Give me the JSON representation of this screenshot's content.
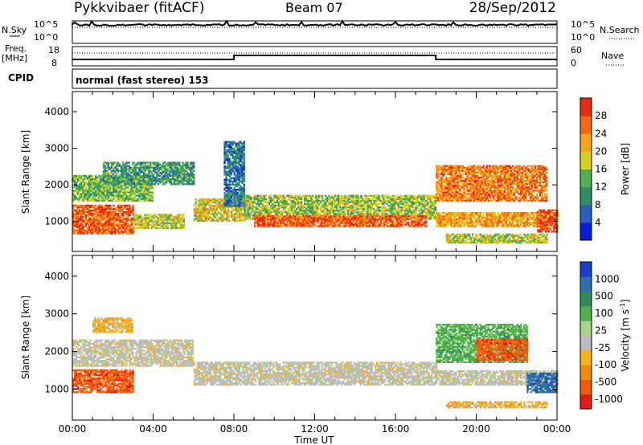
{
  "header": {
    "station": "Pykkvibaer (fitACF)",
    "beam": "Beam 07",
    "date": "28/Sep/2012"
  },
  "strip_labels": {
    "nsky": "N.Sky",
    "nsky_top": "10^5",
    "nsky_bottom": "10^0",
    "nsearch": "N.Search",
    "nsearch_top": "10^5",
    "nsearch_bottom": "10^0",
    "freq": "Freq.",
    "freq_unit": "[MHz]",
    "freq_top": "18",
    "freq_bottom": "8",
    "nave": "Nave",
    "nave_top": "60",
    "nave_bottom": "0",
    "cpid": "CPID",
    "cpid_text": "normal (fast stereo) 153"
  },
  "colors": {
    "frame": "#000000",
    "gray_scatter": "#bdbdbd"
  },
  "chart_data": [
    {
      "type": "heatmap",
      "name": "power",
      "xlabel": "Time UT",
      "ylabel": "Slant Range [km]",
      "x_ticks": [
        "00:00",
        "04:00",
        "08:00",
        "12:00",
        "16:00",
        "20:00",
        "00:00"
      ],
      "xlim_hours": [
        0,
        24
      ],
      "y_ticks": [
        1000,
        2000,
        3000,
        4000
      ],
      "ylim": [
        180,
        4550
      ],
      "colorbar": {
        "label": "Power [dB]",
        "ticks": [
          "4",
          "8",
          "12",
          "16",
          "20",
          "24",
          "28"
        ],
        "range": [
          0,
          30
        ],
        "colors": [
          "#0a1ed8",
          "#2a5fbc",
          "#2f8f6a",
          "#4fae4f",
          "#d6d21e",
          "#f5a31a",
          "#ef6a12",
          "#e82a12"
        ]
      },
      "bands": [
        {
          "t0": 0.0,
          "t1": 3.0,
          "r0": 650,
          "r1": 1450,
          "level": 0.85
        },
        {
          "t0": 3.0,
          "t1": 5.5,
          "r0": 800,
          "r1": 1200,
          "level": 0.55
        },
        {
          "t0": 0.0,
          "t1": 4.0,
          "r0": 1550,
          "r1": 2250,
          "level": 0.45
        },
        {
          "t0": 1.5,
          "t1": 6.0,
          "r0": 2000,
          "r1": 2600,
          "level": 0.35
        },
        {
          "t0": 6.0,
          "t1": 8.5,
          "r0": 1000,
          "r1": 1600,
          "level": 0.6
        },
        {
          "t0": 8.5,
          "t1": 18.0,
          "r0": 1050,
          "r1": 1700,
          "level": 0.5
        },
        {
          "t0": 9.0,
          "t1": 17.5,
          "r0": 850,
          "r1": 1150,
          "level": 0.85
        },
        {
          "t0": 18.0,
          "t1": 23.5,
          "r0": 1550,
          "r1": 2500,
          "level": 0.78
        },
        {
          "t0": 18.0,
          "t1": 24.0,
          "r0": 850,
          "r1": 1250,
          "level": 0.7
        },
        {
          "t0": 23.0,
          "t1": 24.0,
          "r0": 700,
          "r1": 1300,
          "level": 0.9
        },
        {
          "t0": 18.5,
          "t1": 23.5,
          "r0": 400,
          "r1": 650,
          "level": 0.55
        },
        {
          "t0": 7.5,
          "t1": 8.5,
          "r0": 1400,
          "r1": 3200,
          "level": 0.25
        }
      ]
    },
    {
      "type": "heatmap",
      "name": "velocity",
      "xlabel": "Time UT",
      "ylabel": "Slant Range [km]",
      "x_ticks": [
        "00:00",
        "04:00",
        "08:00",
        "12:00",
        "16:00",
        "20:00",
        "00:00"
      ],
      "xlim_hours": [
        0,
        24
      ],
      "y_ticks": [
        1000,
        2000,
        3000,
        4000
      ],
      "ylim": [
        180,
        4550
      ],
      "colorbar": {
        "label": "Velocity [m s",
        "label_sup": "-1",
        "label_end": "]",
        "ticks": [
          "1000",
          "500",
          "100",
          "25",
          "-25",
          "-100",
          "-500",
          "-1000"
        ],
        "colors": [
          "#1a3fc8",
          "#2e6fb0",
          "#2f8a5a",
          "#4fb04a",
          "#a8d48c",
          "#bdbdbd",
          "#f5b21a",
          "#f08a12",
          "#ee5a12",
          "#e41a12"
        ]
      },
      "bands": [
        {
          "t0": 0.0,
          "t1": 3.0,
          "r0": 900,
          "r1": 1500,
          "level": "-500"
        },
        {
          "t0": 0.0,
          "t1": 6.0,
          "r0": 1600,
          "r1": 2300,
          "level": "0"
        },
        {
          "t0": 1.0,
          "t1": 3.0,
          "r0": 2500,
          "r1": 2900,
          "level": "-100"
        },
        {
          "t0": 6.0,
          "t1": 18.0,
          "r0": 1100,
          "r1": 1700,
          "level": "0"
        },
        {
          "t0": 18.0,
          "t1": 22.5,
          "r0": 1700,
          "r1": 2700,
          "level": "100"
        },
        {
          "t0": 20.0,
          "t1": 22.5,
          "r0": 1750,
          "r1": 2300,
          "level": "-500"
        },
        {
          "t0": 18.0,
          "t1": 24.0,
          "r0": 1100,
          "r1": 1500,
          "level": "0"
        },
        {
          "t0": 22.5,
          "t1": 24.0,
          "r0": 900,
          "r1": 1400,
          "level": "500"
        },
        {
          "t0": 18.5,
          "t1": 23.5,
          "r0": 500,
          "r1": 650,
          "level": "-100"
        }
      ]
    }
  ]
}
